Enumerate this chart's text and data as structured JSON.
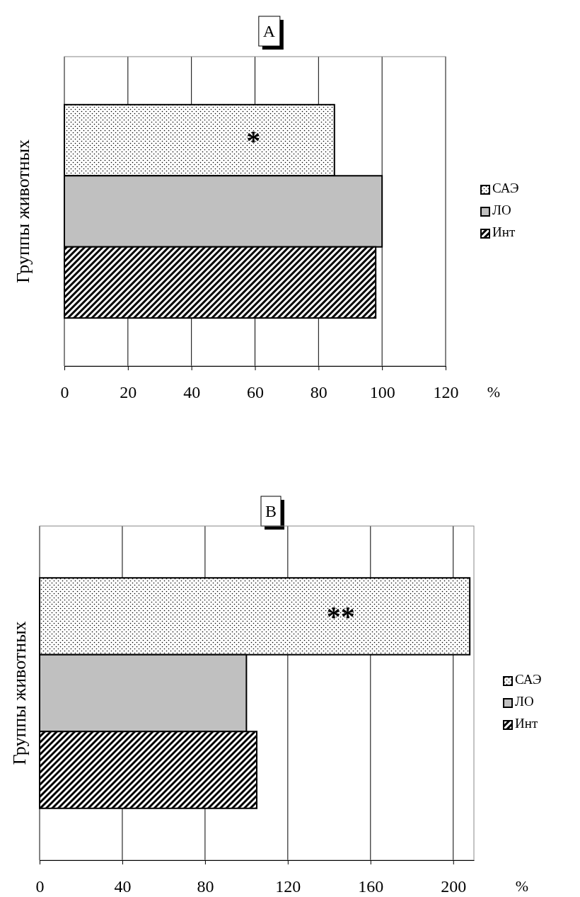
{
  "chart_data": [
    {
      "type": "bar",
      "orientation": "horizontal",
      "title": "A",
      "ylabel": "Группы животных",
      "xlabel": "%",
      "categories": [
        null
      ],
      "series": [
        {
          "name": "САЭ",
          "color": "#000000",
          "values": [
            85
          ]
        },
        {
          "name": "ЛО",
          "color": "#c0c0c0",
          "values": [
            100
          ]
        },
        {
          "name": "Инт",
          "color": "#000000",
          "values": [
            98
          ]
        }
      ],
      "xlim": [
        0,
        120
      ],
      "xticks": [
        0,
        20,
        40,
        60,
        80,
        100,
        120
      ],
      "grid": "x",
      "legend": "right",
      "annotations": [
        "*"
      ]
    },
    {
      "type": "bar",
      "orientation": "horizontal",
      "title": "B",
      "ylabel": "Группы животных",
      "xlabel": "%",
      "categories": [
        null
      ],
      "series": [
        {
          "name": "САЭ",
          "color": "#000000",
          "values": [
            208
          ]
        },
        {
          "name": "ЛО",
          "color": "#c0c0c0",
          "values": [
            100
          ]
        },
        {
          "name": "Инт",
          "color": "#000000",
          "values": [
            105
          ]
        }
      ],
      "xlim": [
        0,
        210
      ],
      "xticks": [
        0,
        40,
        80,
        120,
        160,
        200
      ],
      "grid": "x",
      "legend": "right",
      "annotations": [
        "**"
      ]
    }
  ]
}
